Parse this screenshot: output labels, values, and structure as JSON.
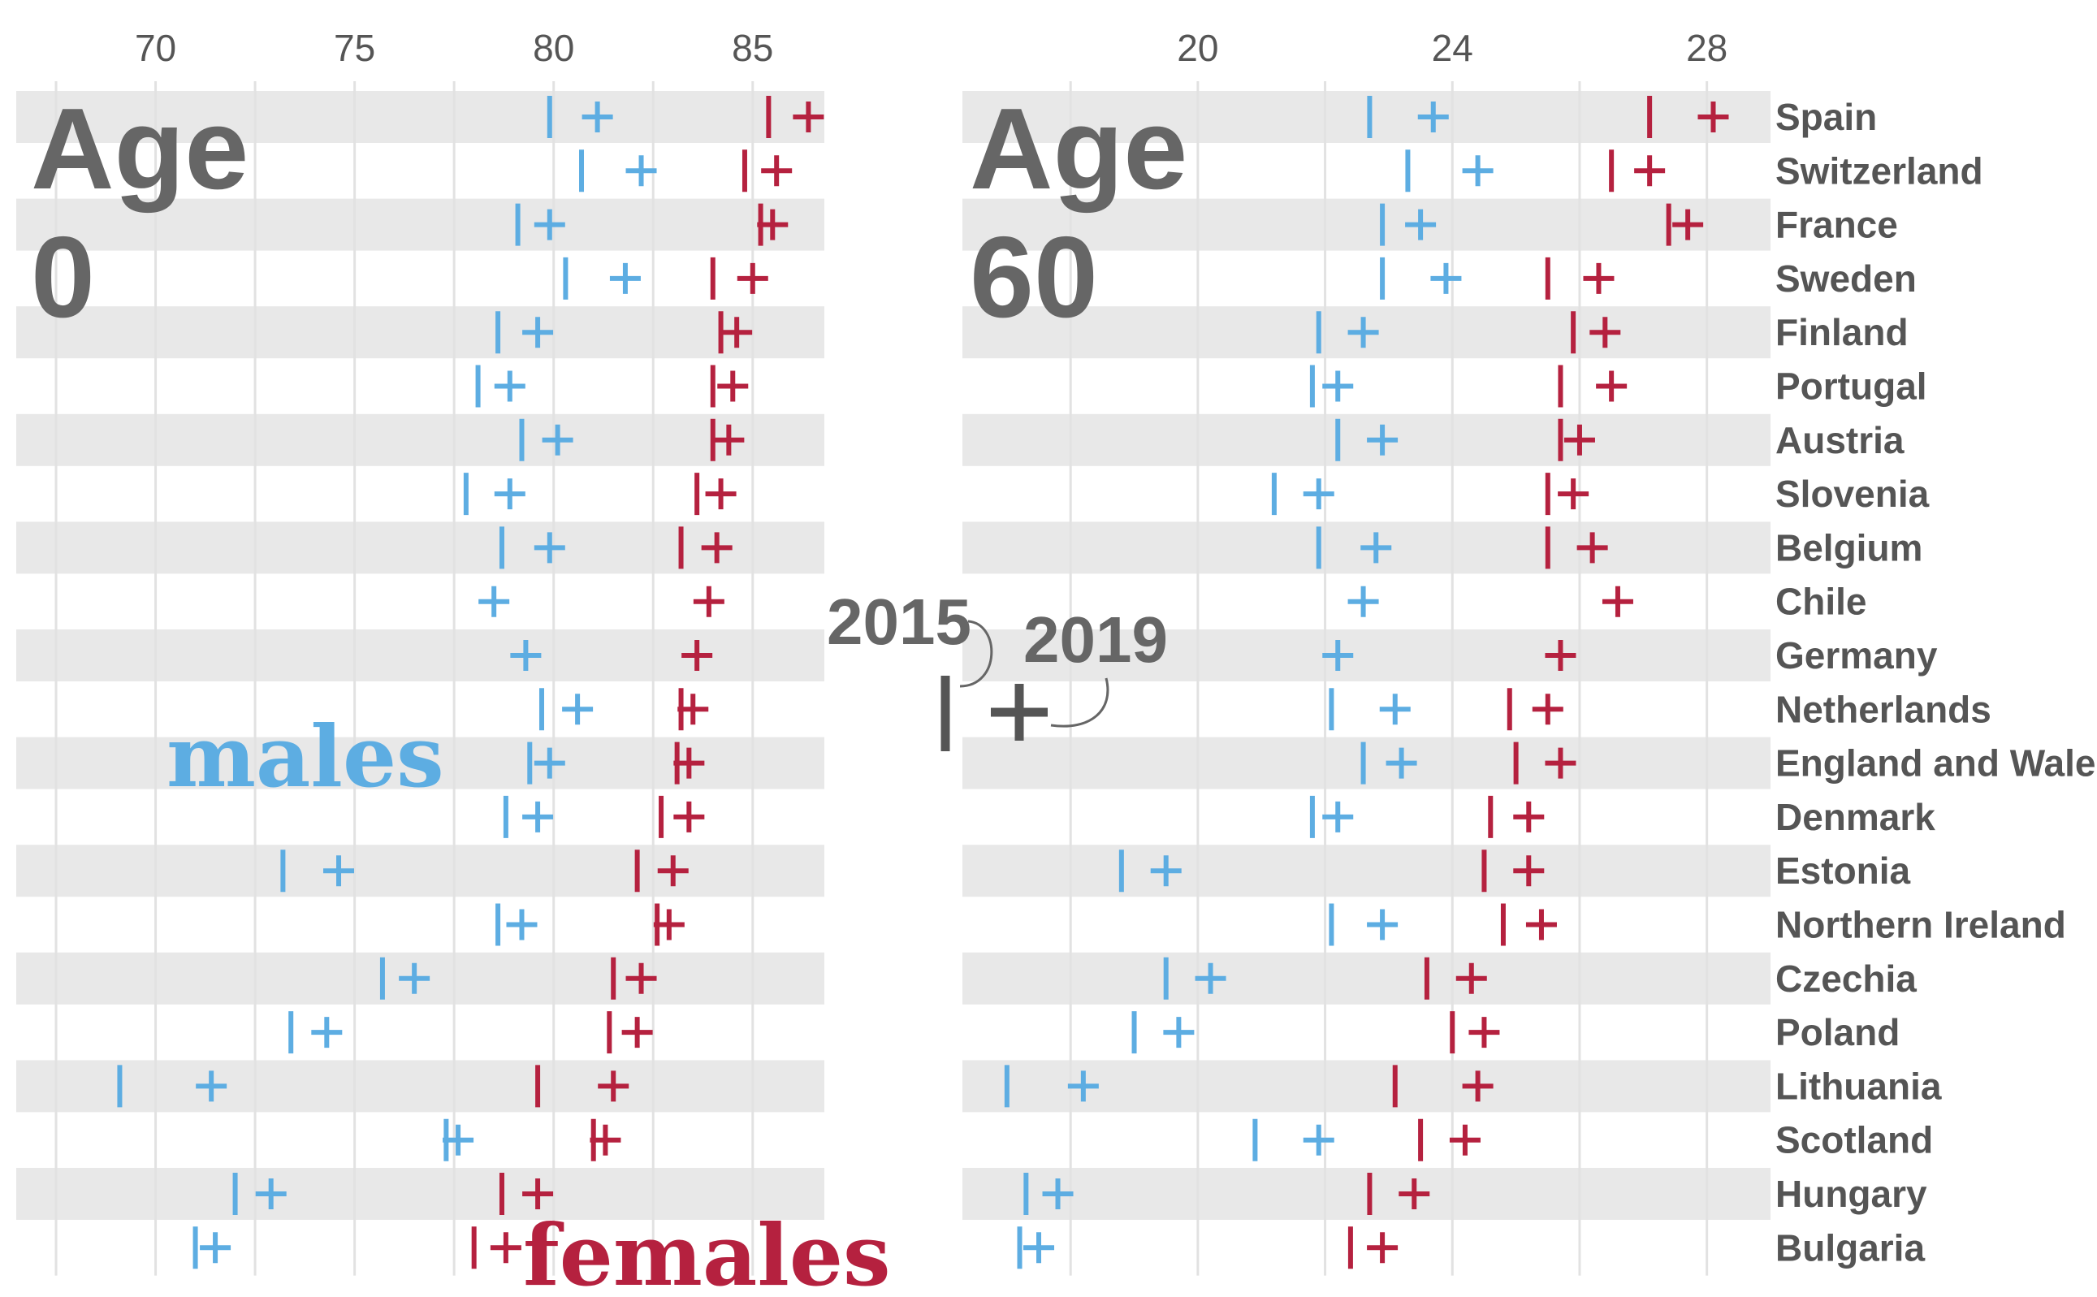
{
  "panels": [
    {
      "title_line1": "Age",
      "title_line2": "0"
    },
    {
      "title_line1": "Age",
      "title_line2": "60"
    }
  ],
  "legend": {
    "year_start": "2015",
    "year_end": "2019"
  },
  "sex_labels": {
    "males": "males",
    "females": "females"
  },
  "colors": {
    "males": "#5dade2",
    "females": "#b5213f",
    "band": "#e8e8e8",
    "grid": "#e2e2e2",
    "text": "#555555",
    "legend_mark": "#555555"
  },
  "chart_data": [
    {
      "type": "dot",
      "title": "",
      "xlim": [
        66.5,
        86.8
      ],
      "ticks": [
        70,
        75,
        80,
        85
      ],
      "categories": [
        "Spain",
        "Switzerland",
        "France",
        "Sweden",
        "Finland",
        "Portugal",
        "Austria",
        "Slovenia",
        "Belgium",
        "Chile",
        "Germany",
        "Netherlands",
        "England and Wales",
        "Denmark",
        "Estonia",
        "Northern Ireland",
        "Czechia",
        "Poland",
        "Lithuania",
        "Scotland",
        "Hungary",
        "Bulgaria"
      ],
      "series": [
        {
          "name": "males",
          "year": "2015",
          "values": [
            79.9,
            80.7,
            79.1,
            80.3,
            78.6,
            78.1,
            79.2,
            77.8,
            78.7,
            null,
            null,
            79.7,
            79.4,
            78.8,
            73.2,
            78.6,
            75.7,
            73.4,
            69.1,
            77.3,
            72.0,
            71.0
          ]
        },
        {
          "name": "males",
          "year": "2019",
          "values": [
            81.1,
            82.2,
            79.9,
            81.8,
            79.6,
            78.9,
            80.1,
            78.9,
            79.9,
            78.5,
            79.3,
            80.6,
            79.9,
            79.6,
            74.6,
            79.2,
            76.5,
            74.3,
            71.4,
            77.6,
            72.9,
            71.5
          ]
        },
        {
          "name": "females",
          "year": "2015",
          "values": [
            85.4,
            84.8,
            85.2,
            84.0,
            84.2,
            84.0,
            84.0,
            83.6,
            83.2,
            null,
            null,
            83.2,
            83.1,
            82.7,
            82.1,
            82.6,
            81.5,
            81.4,
            79.6,
            81.0,
            78.7,
            78.0
          ]
        },
        {
          "name": "females",
          "year": "2019",
          "values": [
            86.4,
            85.6,
            85.5,
            85.0,
            84.6,
            84.5,
            84.4,
            84.2,
            84.1,
            83.9,
            83.6,
            83.5,
            83.4,
            83.4,
            83.0,
            82.9,
            82.2,
            82.1,
            81.5,
            81.3,
            79.6,
            78.8
          ]
        }
      ]
    },
    {
      "type": "dot",
      "title": "",
      "xlim": [
        16.3,
        29.0
      ],
      "ticks": [
        20,
        24,
        28
      ],
      "categories": [
        "Spain",
        "Switzerland",
        "France",
        "Sweden",
        "Finland",
        "Portugal",
        "Austria",
        "Slovenia",
        "Belgium",
        "Chile",
        "Germany",
        "Netherlands",
        "England and Wales",
        "Denmark",
        "Estonia",
        "Northern Ireland",
        "Czechia",
        "Poland",
        "Lithuania",
        "Scotland",
        "Hungary",
        "Bulgaria"
      ],
      "series": [
        {
          "name": "males",
          "year": "2015",
          "values": [
            22.7,
            23.3,
            22.9,
            22.9,
            21.9,
            21.8,
            22.2,
            21.2,
            21.9,
            null,
            null,
            22.1,
            22.6,
            21.8,
            18.8,
            22.1,
            19.5,
            19.0,
            17.0,
            20.9,
            17.3,
            17.2
          ]
        },
        {
          "name": "males",
          "year": "2019",
          "values": [
            23.7,
            24.4,
            23.5,
            23.9,
            22.6,
            22.2,
            22.9,
            21.9,
            22.8,
            22.6,
            22.2,
            23.1,
            23.2,
            22.2,
            19.5,
            22.9,
            20.2,
            19.7,
            18.2,
            21.9,
            17.8,
            17.5
          ]
        },
        {
          "name": "females",
          "year": "2015",
          "values": [
            27.1,
            26.5,
            27.4,
            25.5,
            25.9,
            25.7,
            25.7,
            25.5,
            25.5,
            null,
            null,
            24.9,
            25.0,
            24.6,
            24.5,
            24.8,
            23.6,
            24.0,
            23.1,
            23.5,
            22.7,
            22.4
          ]
        },
        {
          "name": "females",
          "year": "2019",
          "values": [
            28.1,
            27.1,
            27.7,
            26.3,
            26.4,
            26.5,
            26.0,
            25.9,
            26.2,
            26.6,
            25.7,
            25.5,
            25.7,
            25.2,
            25.2,
            25.4,
            24.3,
            24.5,
            24.4,
            24.2,
            23.4,
            22.9
          ]
        }
      ]
    }
  ]
}
